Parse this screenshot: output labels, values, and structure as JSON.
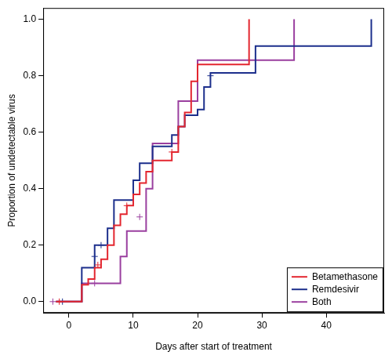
{
  "chart_data": {
    "type": "step",
    "x_label": "Days after start of treatment",
    "y_label": "Proportion of undetectable virus",
    "xlim": [
      -4,
      49
    ],
    "ylim": [
      -0.04,
      1.04
    ],
    "xticks": [
      0,
      10,
      20,
      30,
      40
    ],
    "yticks": [
      {
        "value": 0,
        "label": "0.0"
      },
      {
        "value": 0.2,
        "label": "0.2"
      },
      {
        "value": 0.4,
        "label": "0.4"
      },
      {
        "value": 0.6,
        "label": "0.6"
      },
      {
        "value": 0.8,
        "label": "0.8"
      },
      {
        "value": 1,
        "label": "1.0"
      }
    ],
    "grid": false,
    "legend": "lower right",
    "series": [
      {
        "name": "Betamethasone",
        "color": "#e3262f",
        "x": [
          -2,
          2,
          3,
          4,
          5,
          6,
          7,
          8,
          9,
          10,
          11,
          12,
          13,
          16,
          17,
          18,
          19,
          20,
          28
        ],
        "values": [
          0,
          0.06,
          0.08,
          0.12,
          0.15,
          0.2,
          0.27,
          0.31,
          0.34,
          0.38,
          0.42,
          0.46,
          0.5,
          0.53,
          0.62,
          0.67,
          0.78,
          0.84,
          1.0
        ],
        "censored": {
          "x": [
            -1.5,
            4.5,
            9,
            16
          ],
          "values": [
            0,
            0.13,
            0.34,
            0.53
          ]
        }
      },
      {
        "name": "Remdesivir",
        "color": "#1c2f8c",
        "x": [
          -2,
          2,
          4,
          6,
          7,
          10,
          11,
          13,
          16,
          17,
          18,
          20,
          21,
          22,
          29,
          47
        ],
        "values": [
          0,
          0.12,
          0.2,
          0.26,
          0.36,
          0.43,
          0.49,
          0.55,
          0.59,
          0.62,
          0.66,
          0.68,
          0.76,
          0.81,
          0.905,
          1.0
        ],
        "censored": {
          "x": [
            -1,
            4,
            5,
            22
          ],
          "values": [
            0,
            0.16,
            0.2,
            0.8
          ]
        }
      },
      {
        "name": "Both",
        "color": "#9a3f9f",
        "x": [
          -2,
          2,
          8,
          9,
          12,
          13,
          17,
          20,
          35
        ],
        "values": [
          0,
          0.065,
          0.16,
          0.25,
          0.4,
          0.56,
          0.71,
          0.855,
          1.0
        ],
        "censored": {
          "x": [
            -2.5,
            4,
            11
          ],
          "values": [
            0,
            0.065,
            0.3
          ]
        }
      }
    ]
  }
}
